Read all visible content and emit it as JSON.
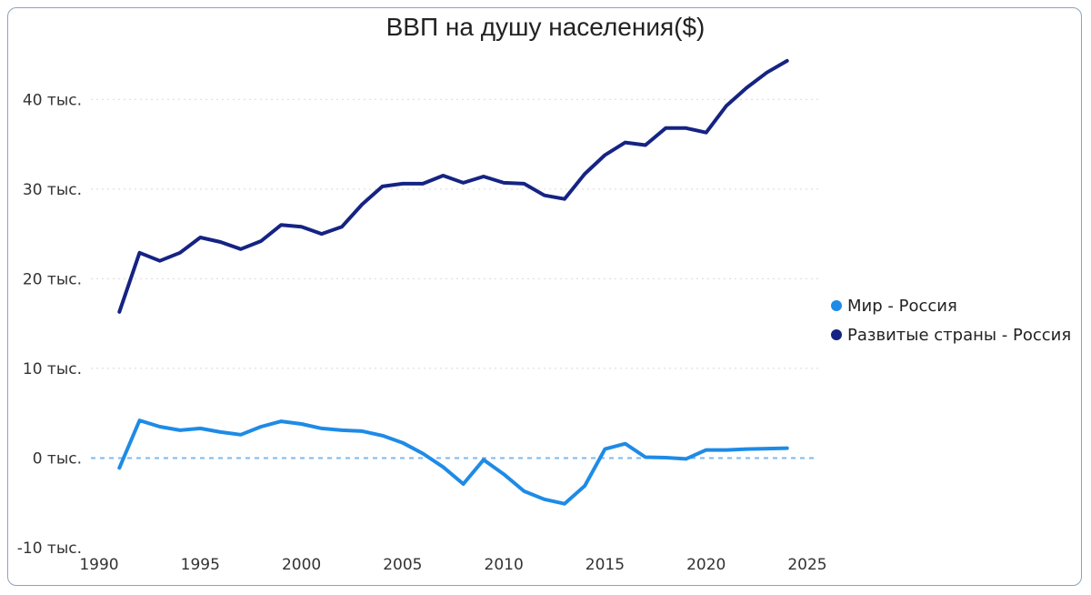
{
  "chart_data": {
    "type": "line",
    "title": "ВВП на душу населения($)",
    "xlabel": "",
    "ylabel": "",
    "xlim": [
      1990,
      2025
    ],
    "ylim": [
      -10000,
      45000
    ],
    "x_ticks": [
      {
        "value": 1990,
        "label": "1990"
      },
      {
        "value": 1995,
        "label": "1995"
      },
      {
        "value": 2000,
        "label": "2000"
      },
      {
        "value": 2005,
        "label": "2005"
      },
      {
        "value": 2010,
        "label": "2010"
      },
      {
        "value": 2015,
        "label": "2015"
      },
      {
        "value": 2020,
        "label": "2020"
      },
      {
        "value": 2025,
        "label": "2025"
      }
    ],
    "y_ticks": [
      {
        "value": -10000,
        "label": "-10 тыс."
      },
      {
        "value": 0,
        "label": "0 тыс."
      },
      {
        "value": 10000,
        "label": "10 тыс."
      },
      {
        "value": 20000,
        "label": "20 тыс."
      },
      {
        "value": 30000,
        "label": "30 тыс."
      },
      {
        "value": 40000,
        "label": "40 тыс."
      }
    ],
    "grid": "horizontal-dotted",
    "zero_line": "dashed",
    "legend_position": "right",
    "x": [
      1991,
      1992,
      1993,
      1994,
      1995,
      1996,
      1997,
      1998,
      1999,
      2000,
      2001,
      2002,
      2003,
      2004,
      2005,
      2006,
      2007,
      2008,
      2009,
      2010,
      2011,
      2012,
      2013,
      2014,
      2015,
      2016,
      2017,
      2018,
      2019,
      2020,
      2021,
      2022,
      2023,
      2024
    ],
    "series": [
      {
        "name": "Мир - Россия",
        "color": "#1e8be6",
        "values": [
          -1100,
          4200,
          3500,
          3100,
          3300,
          2900,
          2600,
          3500,
          4100,
          3800,
          3300,
          3100,
          3000,
          2500,
          1700,
          500,
          -1000,
          -2900,
          -200,
          -1800,
          -3700,
          -4600,
          -5100,
          -3100,
          1000,
          1600,
          100,
          50,
          -100,
          900,
          900,
          1000,
          1050,
          1100
        ]
      },
      {
        "name": "Развитые страны - Россия",
        "color": "#152383",
        "values": [
          16300,
          22900,
          22000,
          22900,
          24600,
          24100,
          23300,
          24200,
          26000,
          25800,
          25000,
          25800,
          28300,
          30300,
          30600,
          30600,
          31500,
          30700,
          31400,
          30700,
          30600,
          29300,
          28900,
          31700,
          33800,
          35200,
          34900,
          36800,
          36800,
          36300,
          39300,
          41300,
          43000,
          44300
        ]
      }
    ]
  }
}
